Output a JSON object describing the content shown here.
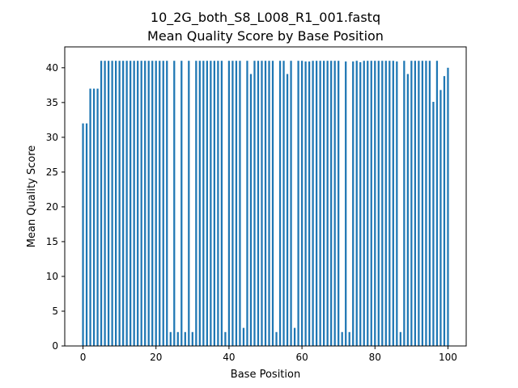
{
  "chart_data": {
    "type": "bar",
    "title": "10_2G_both_S8_L008_R1_001.fastq",
    "subtitle": "Mean Quality Score by Base Position",
    "xlabel": "Base Position",
    "ylabel": "Mean Quality Score",
    "xlim": [
      -5,
      105
    ],
    "ylim": [
      0,
      43
    ],
    "xticks": [
      0,
      20,
      40,
      60,
      80,
      100
    ],
    "yticks": [
      0,
      5,
      10,
      15,
      20,
      25,
      30,
      35,
      40
    ],
    "bar_color": "#1f77b4",
    "grid": false,
    "x": [
      0,
      1,
      2,
      3,
      4,
      5,
      6,
      7,
      8,
      9,
      10,
      11,
      12,
      13,
      14,
      15,
      16,
      17,
      18,
      19,
      20,
      21,
      22,
      23,
      24,
      25,
      26,
      27,
      28,
      29,
      30,
      31,
      32,
      33,
      34,
      35,
      36,
      37,
      38,
      39,
      40,
      41,
      42,
      43,
      44,
      45,
      46,
      47,
      48,
      49,
      50,
      51,
      52,
      53,
      54,
      55,
      56,
      57,
      58,
      59,
      60,
      61,
      62,
      63,
      64,
      65,
      66,
      67,
      68,
      69,
      70,
      71,
      72,
      73,
      74,
      75,
      76,
      77,
      78,
      79,
      80,
      81,
      82,
      83,
      84,
      85,
      86,
      87,
      88,
      89,
      90,
      91,
      92,
      93,
      94,
      95,
      96,
      97,
      98,
      99,
      100
    ],
    "values": [
      32,
      32,
      37,
      37,
      37,
      41,
      41,
      41,
      41,
      41,
      41,
      41,
      41,
      41,
      41,
      41,
      41,
      41,
      41,
      41,
      41,
      41,
      41,
      41,
      2,
      41,
      2,
      41,
      2,
      41,
      2,
      41,
      41,
      41,
      41,
      41,
      41,
      41,
      41,
      2,
      41,
      41,
      41,
      41,
      2.6,
      41,
      39.1,
      41,
      41,
      41,
      41,
      41,
      41,
      2,
      41,
      41,
      39.1,
      41,
      2.6,
      41,
      41,
      40.9,
      40.9,
      41,
      41,
      41,
      41,
      41,
      41,
      41,
      41,
      2,
      40.9,
      2,
      40.9,
      41,
      40.8,
      41,
      41,
      41,
      41,
      41,
      41,
      41,
      41,
      41,
      40.9,
      2,
      41,
      39.1,
      41,
      41,
      41,
      41,
      41,
      41,
      35.1,
      41,
      36.8,
      38.8,
      40
    ]
  }
}
